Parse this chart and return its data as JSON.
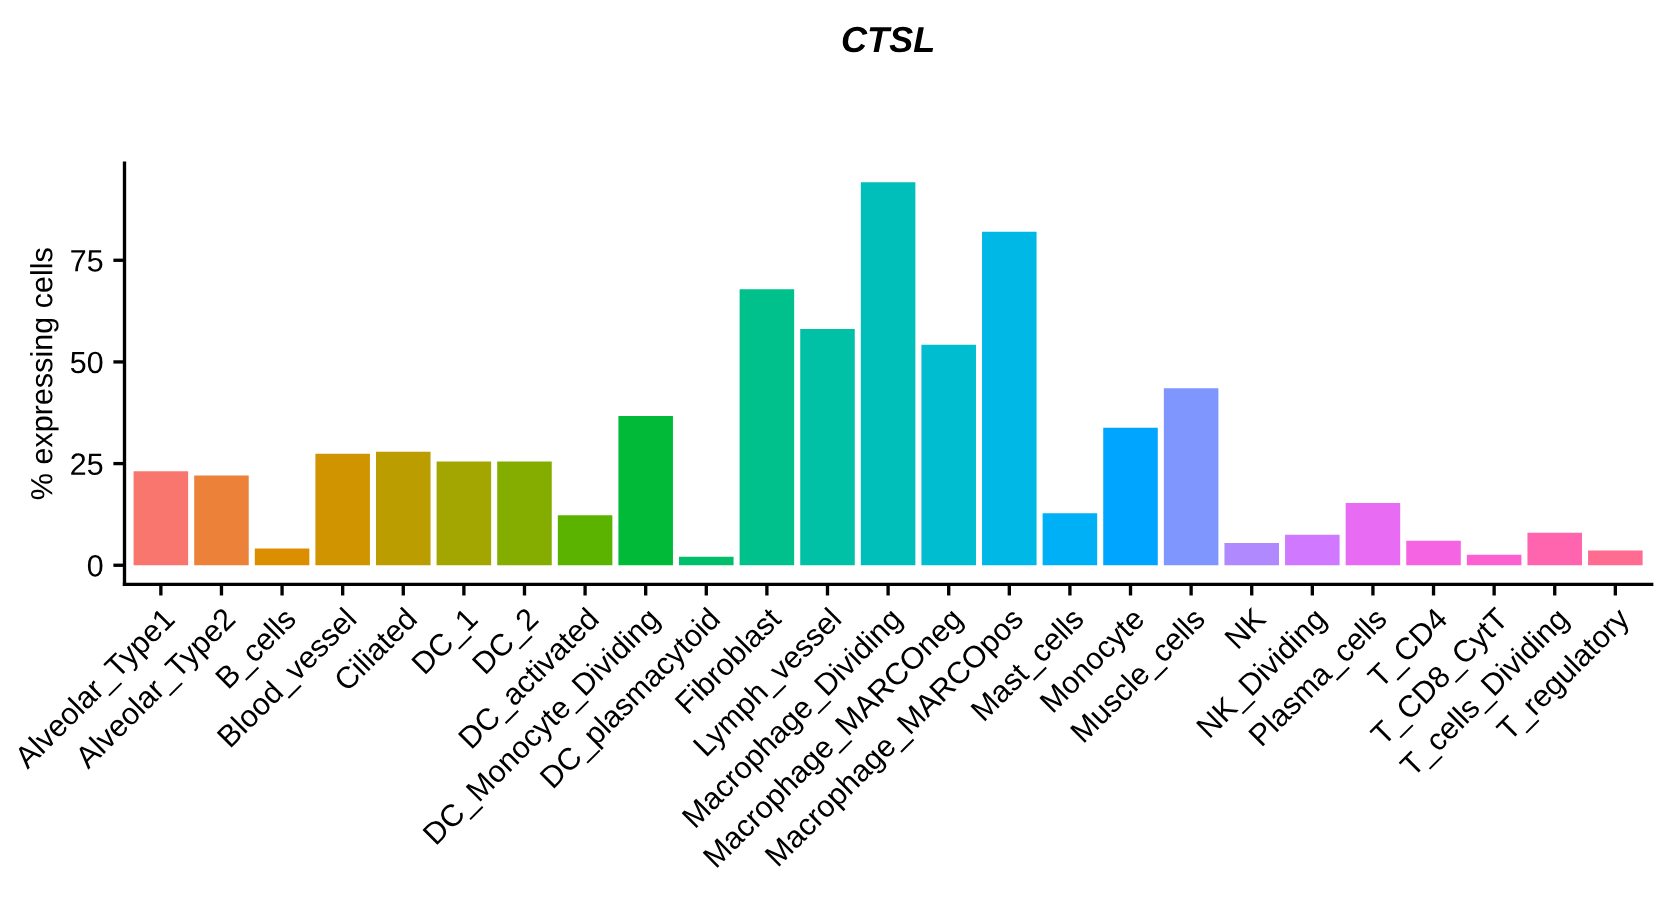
{
  "chart_data": {
    "type": "bar",
    "title": "CTSL",
    "ylabel": "% expressing cells",
    "categories": [
      "Alveolar_Type1",
      "Alveolar_Type2",
      "B_cells",
      "Blood_vessel",
      "Ciliated",
      "DC_1",
      "DC_2",
      "DC_activated",
      "DC_Monocyte_Dividing",
      "DC_plasmacytoid",
      "Fibroblast",
      "Lymph_vessel",
      "Macrophage_Dividing",
      "Macrophage_MARCOneg",
      "Macrophage_MARCOpos",
      "Mast_cells",
      "Monocyte",
      "Muscle_cells",
      "NK",
      "NK_Dividing",
      "Plasma_cells",
      "T_CD4",
      "T_CD8_CytT",
      "T_cells_Dividing",
      "T_regulatory"
    ],
    "values": [
      23.1,
      22.1,
      4.1,
      27.4,
      27.9,
      25.5,
      25.5,
      12.3,
      36.7,
      2.1,
      67.9,
      58.1,
      94.2,
      54.2,
      82.0,
      12.8,
      33.8,
      43.5,
      5.5,
      7.5,
      15.3,
      6.0,
      2.6,
      8.0,
      3.6
    ],
    "colors": [
      "#F8766D",
      "#EC8239",
      "#DB8E00",
      "#CF9400",
      "#BB9D00",
      "#A3A500",
      "#85AD00",
      "#5BB300",
      "#00BA38",
      "#00BE6C",
      "#00C08B",
      "#00C1A5",
      "#00BFBA",
      "#00BDD0",
      "#00B8E5",
      "#00B0F6",
      "#00A5FF",
      "#7F96FF",
      "#B089FF",
      "#D078FF",
      "#E76BF3",
      "#F564E3",
      "#FD61D1",
      "#FF65AE",
      "#FF6C91"
    ],
    "ylim": [
      -4.7,
      98.9
    ],
    "yticks": [
      0,
      25,
      50,
      75
    ],
    "grid": false,
    "legend": false
  }
}
